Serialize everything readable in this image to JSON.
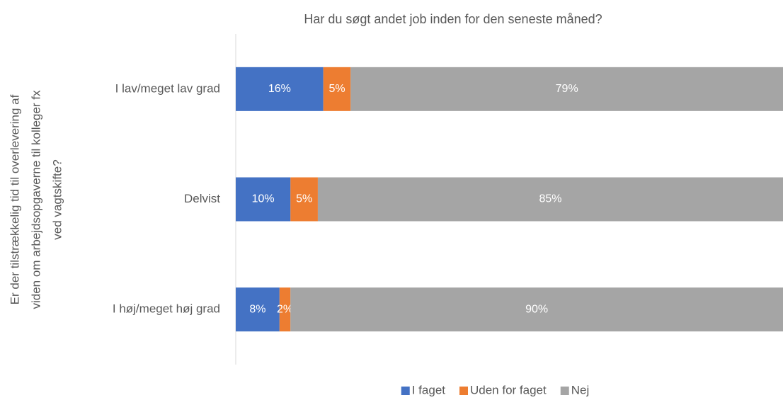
{
  "chart_data": {
    "type": "stacked-barh",
    "title": "Har du søgt andet job inden for den seneste måned?",
    "y_label": [
      "Er der tilstrækkelig tid til overlevering af",
      "viden om arbejdsopgaverne til kolleger fx",
      "ved vagtskifte?"
    ],
    "categories": [
      "I lav/meget lav grad",
      "Delvist",
      "I høj/meget høj grad"
    ],
    "series": [
      {
        "name": "I faget",
        "color": "#4472c4",
        "values": [
          16,
          10,
          8
        ],
        "value_labels": [
          "16%",
          "10%",
          "8%"
        ]
      },
      {
        "name": "Uden for faget",
        "color": "#ed7d31",
        "values": [
          5,
          5,
          2
        ],
        "value_labels": [
          "5%",
          "5%",
          "2%"
        ]
      },
      {
        "name": "Nej",
        "color": "#a5a5a5",
        "values": [
          79,
          85,
          90
        ],
        "value_labels": [
          "79%",
          "85%",
          "90%"
        ]
      }
    ],
    "xlim": [
      0,
      100
    ],
    "legend": "bottom"
  }
}
